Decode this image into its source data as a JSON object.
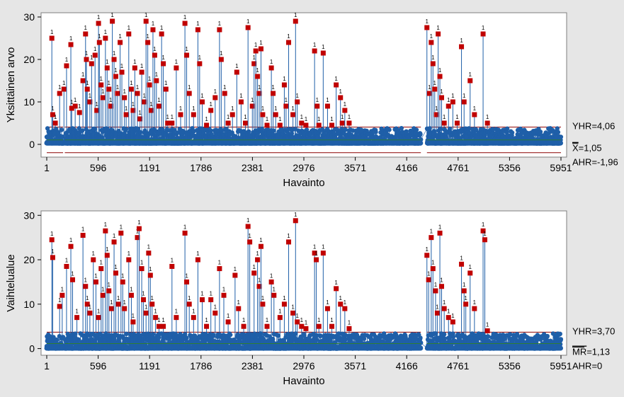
{
  "chart_data": [
    {
      "type": "line",
      "name": "individuals-chart",
      "xlabel": "Havainto",
      "ylabel": "Yksittäinen arvo",
      "xlim": [
        1,
        5951
      ],
      "ylim": [
        -3,
        31
      ],
      "x_ticks": [
        1,
        596,
        1191,
        1786,
        2381,
        2976,
        3571,
        4166,
        4761,
        5356,
        5951
      ],
      "x_tick_labels": [
        "1",
        "596",
        "1191",
        "1786",
        "2381",
        "2976",
        "3571",
        "4166",
        "4761",
        "5356",
        "5951"
      ],
      "y_ticks": [
        0,
        10,
        20,
        30
      ],
      "y_tick_labels": [
        "0",
        "10",
        "20",
        "30"
      ],
      "limits": {
        "ucl": 4.06,
        "center": 1.05,
        "lcl": -1.96,
        "ucl_label": "YHR=4,06",
        "center_label": "X=1,05",
        "lcl_label": "AHR=-1,96",
        "center_overline": "X",
        "center_value_text": "=1,05"
      },
      "in_control_color": "#1f5fa8",
      "out_of_control_color": "#c00000",
      "limit_color": "#8b0000",
      "test_label": "1",
      "gap_segments": [
        [
          1,
          190
        ],
        [
          210,
          4330
        ],
        [
          4400,
          5951
        ]
      ],
      "out_of_control_points": [
        [
          60,
          25
        ],
        [
          70,
          7
        ],
        [
          100,
          5
        ],
        [
          150,
          12
        ],
        [
          200,
          13
        ],
        [
          230,
          18.5
        ],
        [
          280,
          23.5
        ],
        [
          290,
          8.5
        ],
        [
          330,
          9
        ],
        [
          380,
          7.5
        ],
        [
          420,
          15
        ],
        [
          450,
          26
        ],
        [
          460,
          20
        ],
        [
          470,
          13
        ],
        [
          500,
          10
        ],
        [
          520,
          19
        ],
        [
          560,
          21
        ],
        [
          580,
          8
        ],
        [
          600,
          28.5
        ],
        [
          610,
          24
        ],
        [
          630,
          14
        ],
        [
          650,
          11
        ],
        [
          680,
          25
        ],
        [
          700,
          18
        ],
        [
          720,
          13
        ],
        [
          740,
          9
        ],
        [
          760,
          29
        ],
        [
          780,
          20
        ],
        [
          800,
          16
        ],
        [
          820,
          12
        ],
        [
          850,
          24
        ],
        [
          870,
          17
        ],
        [
          900,
          11
        ],
        [
          920,
          7
        ],
        [
          950,
          26
        ],
        [
          980,
          13
        ],
        [
          1000,
          8
        ],
        [
          1020,
          18
        ],
        [
          1050,
          12
        ],
        [
          1080,
          6
        ],
        [
          1100,
          17
        ],
        [
          1130,
          10
        ],
        [
          1150,
          29
        ],
        [
          1170,
          24
        ],
        [
          1190,
          14
        ],
        [
          1210,
          8
        ],
        [
          1230,
          27
        ],
        [
          1250,
          21
        ],
        [
          1270,
          15
        ],
        [
          1300,
          9
        ],
        [
          1330,
          26
        ],
        [
          1350,
          19
        ],
        [
          1380,
          13
        ],
        [
          1400,
          5
        ],
        [
          1450,
          5
        ],
        [
          1500,
          18
        ],
        [
          1550,
          7
        ],
        [
          1600,
          28.5
        ],
        [
          1620,
          21
        ],
        [
          1650,
          12
        ],
        [
          1700,
          7
        ],
        [
          1750,
          27
        ],
        [
          1770,
          19
        ],
        [
          1800,
          10
        ],
        [
          1850,
          4.5
        ],
        [
          1900,
          8
        ],
        [
          1950,
          11
        ],
        [
          2000,
          27
        ],
        [
          2020,
          20
        ],
        [
          2060,
          12
        ],
        [
          2100,
          5
        ],
        [
          2150,
          7
        ],
        [
          2200,
          17
        ],
        [
          2250,
          10
        ],
        [
          2300,
          5
        ],
        [
          2330,
          27.5
        ],
        [
          2380,
          9
        ],
        [
          2400,
          19
        ],
        [
          2420,
          22
        ],
        [
          2440,
          16
        ],
        [
          2460,
          12
        ],
        [
          2480,
          22.5
        ],
        [
          2500,
          7
        ],
        [
          2550,
          4.5
        ],
        [
          2600,
          18
        ],
        [
          2620,
          12
        ],
        [
          2650,
          7
        ],
        [
          2700,
          4.5
        ],
        [
          2750,
          14
        ],
        [
          2770,
          9
        ],
        [
          2800,
          24
        ],
        [
          2850,
          7
        ],
        [
          2880,
          29
        ],
        [
          2900,
          10
        ],
        [
          2950,
          5
        ],
        [
          3000,
          4.5
        ],
        [
          3100,
          22
        ],
        [
          3130,
          9
        ],
        [
          3150,
          4.5
        ],
        [
          3200,
          21.5
        ],
        [
          3250,
          9
        ],
        [
          3300,
          4.5
        ],
        [
          3350,
          14
        ],
        [
          3400,
          11
        ],
        [
          3420,
          5
        ],
        [
          3450,
          8
        ],
        [
          3500,
          5
        ],
        [
          4400,
          27.5
        ],
        [
          4430,
          12
        ],
        [
          4450,
          24
        ],
        [
          4470,
          19
        ],
        [
          4490,
          13
        ],
        [
          4510,
          7
        ],
        [
          4530,
          26
        ],
        [
          4550,
          16
        ],
        [
          4570,
          11
        ],
        [
          4600,
          5
        ],
        [
          4650,
          9
        ],
        [
          4700,
          10
        ],
        [
          4750,
          5
        ],
        [
          4800,
          23
        ],
        [
          4830,
          10
        ],
        [
          4900,
          15
        ],
        [
          4950,
          7
        ],
        [
          5050,
          26
        ],
        [
          5100,
          5
        ]
      ]
    },
    {
      "type": "line",
      "name": "moving-range-chart",
      "xlabel": "Havainto",
      "ylabel": "Vaihtelualue",
      "xlim": [
        1,
        5951
      ],
      "ylim": [
        -1.5,
        31
      ],
      "x_ticks": [
        1,
        596,
        1191,
        1786,
        2381,
        2976,
        3571,
        4166,
        4761,
        5356,
        5951
      ],
      "x_tick_labels": [
        "1",
        "596",
        "1191",
        "1786",
        "2381",
        "2976",
        "3571",
        "4166",
        "4761",
        "5356",
        "5951"
      ],
      "y_ticks": [
        0,
        10,
        20,
        30
      ],
      "y_tick_labels": [
        "0",
        "10",
        "20",
        "30"
      ],
      "limits": {
        "ucl": 3.7,
        "center": 1.13,
        "lcl": 0,
        "ucl_label": "YHR=3,70",
        "center_label": "MR=1,13",
        "lcl_label": "AHR=0",
        "center_overline": "MR",
        "center_value_text": "=1,13"
      },
      "in_control_color": "#1f5fa8",
      "out_of_control_color": "#c00000",
      "limit_color": "#8b0000",
      "test_label": "1",
      "gap_segments": [
        [
          1,
          190
        ],
        [
          210,
          4330
        ],
        [
          4400,
          5951
        ]
      ],
      "out_of_control_points": [
        [
          60,
          24.5
        ],
        [
          70,
          20.5
        ],
        [
          150,
          9.5
        ],
        [
          180,
          12
        ],
        [
          230,
          18.5
        ],
        [
          280,
          23
        ],
        [
          300,
          15.5
        ],
        [
          350,
          7
        ],
        [
          420,
          25.5
        ],
        [
          450,
          14
        ],
        [
          470,
          10
        ],
        [
          500,
          8
        ],
        [
          540,
          20
        ],
        [
          570,
          15
        ],
        [
          600,
          7
        ],
        [
          630,
          18
        ],
        [
          650,
          12
        ],
        [
          680,
          26.5
        ],
        [
          700,
          21
        ],
        [
          720,
          13
        ],
        [
          750,
          9
        ],
        [
          780,
          24
        ],
        [
          800,
          17
        ],
        [
          830,
          10
        ],
        [
          860,
          26
        ],
        [
          880,
          15
        ],
        [
          900,
          9
        ],
        [
          950,
          20
        ],
        [
          980,
          12
        ],
        [
          1000,
          6
        ],
        [
          1050,
          25
        ],
        [
          1070,
          27
        ],
        [
          1100,
          18
        ],
        [
          1120,
          11
        ],
        [
          1150,
          8
        ],
        [
          1180,
          21.5
        ],
        [
          1200,
          16.5
        ],
        [
          1220,
          10
        ],
        [
          1260,
          7
        ],
        [
          1300,
          5
        ],
        [
          1350,
          5
        ],
        [
          1450,
          18.5
        ],
        [
          1500,
          7
        ],
        [
          1600,
          26
        ],
        [
          1620,
          15
        ],
        [
          1650,
          10
        ],
        [
          1700,
          7
        ],
        [
          1750,
          20
        ],
        [
          1800,
          11
        ],
        [
          1850,
          5
        ],
        [
          1900,
          11
        ],
        [
          1950,
          8
        ],
        [
          2000,
          18
        ],
        [
          2050,
          12
        ],
        [
          2100,
          6
        ],
        [
          2180,
          16.5
        ],
        [
          2220,
          9
        ],
        [
          2280,
          5
        ],
        [
          2330,
          27.5
        ],
        [
          2350,
          24
        ],
        [
          2400,
          17
        ],
        [
          2440,
          20
        ],
        [
          2460,
          14
        ],
        [
          2480,
          23
        ],
        [
          2500,
          10
        ],
        [
          2550,
          5
        ],
        [
          2600,
          15
        ],
        [
          2630,
          12
        ],
        [
          2700,
          7
        ],
        [
          2750,
          10
        ],
        [
          2800,
          24
        ],
        [
          2850,
          8
        ],
        [
          2880,
          28.8
        ],
        [
          2900,
          6
        ],
        [
          2950,
          5
        ],
        [
          3000,
          4.5
        ],
        [
          3100,
          21.5
        ],
        [
          3120,
          20
        ],
        [
          3150,
          5
        ],
        [
          3200,
          21.5
        ],
        [
          3250,
          9
        ],
        [
          3300,
          5
        ],
        [
          3350,
          13.5
        ],
        [
          3400,
          10
        ],
        [
          3450,
          9
        ],
        [
          3500,
          4.5
        ],
        [
          4400,
          21
        ],
        [
          4420,
          15.5
        ],
        [
          4450,
          25
        ],
        [
          4470,
          18
        ],
        [
          4500,
          13
        ],
        [
          4520,
          8
        ],
        [
          4550,
          26
        ],
        [
          4570,
          14
        ],
        [
          4600,
          9
        ],
        [
          4650,
          7
        ],
        [
          4700,
          6
        ],
        [
          4800,
          19
        ],
        [
          4830,
          13
        ],
        [
          4850,
          10
        ],
        [
          4900,
          17
        ],
        [
          4950,
          9
        ],
        [
          5050,
          26.5
        ],
        [
          5070,
          24.5
        ],
        [
          5100,
          4
        ]
      ]
    }
  ]
}
